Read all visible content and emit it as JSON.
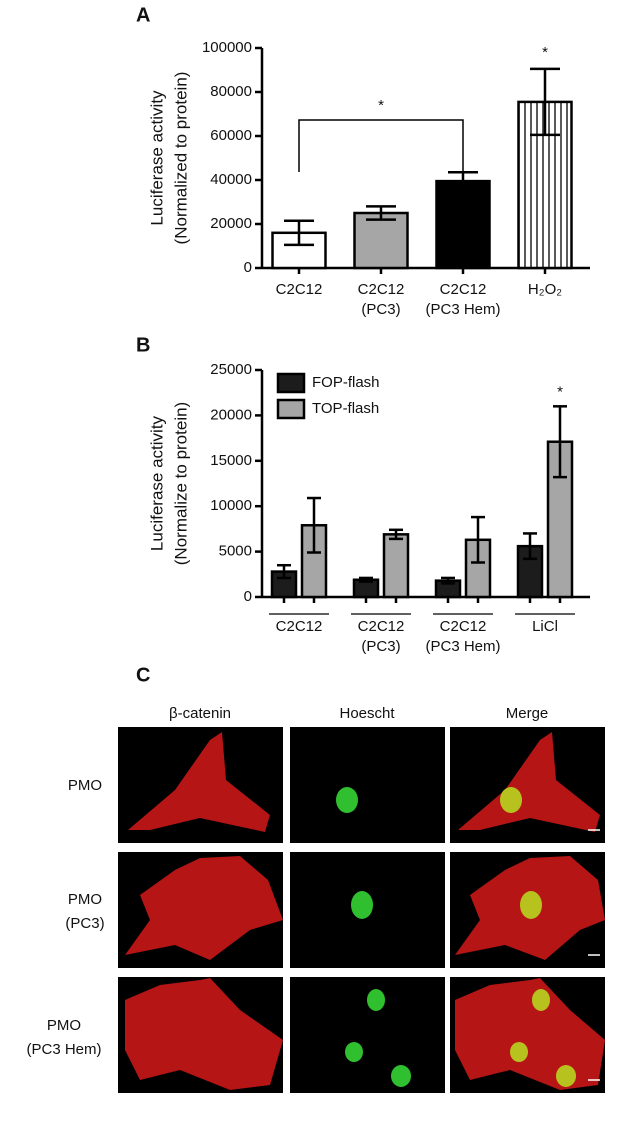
{
  "chart_data": [
    {
      "type": "bar",
      "panel": "A",
      "ylabel": [
        "Luciferase activity",
        "(Normalized to protein)"
      ],
      "categories": [
        [
          "C2C12"
        ],
        [
          "C2C12",
          "(PC3)"
        ],
        [
          "C2C12",
          "(PC3 Hem)"
        ],
        [
          "H₂O₂"
        ]
      ],
      "values": [
        16000,
        25000,
        39500,
        75500
      ],
      "errors": [
        5500,
        3000,
        4000,
        15000
      ],
      "colors": [
        "#ffffff",
        "#a6a6a6",
        "#000000",
        "#ffffff"
      ],
      "hatch": [
        false,
        false,
        false,
        true
      ],
      "annotations": [
        "*",
        "*"
      ],
      "ylim": [
        0,
        100000
      ],
      "yticks": [
        0,
        20000,
        40000,
        60000,
        80000,
        100000
      ],
      "grid": false
    },
    {
      "type": "bar",
      "panel": "B",
      "ylabel": [
        "Luciferase activity",
        "(Normalize to protein)"
      ],
      "categories": [
        [
          "C2C12"
        ],
        [
          "C2C12",
          "(PC3)"
        ],
        [
          "C2C12",
          "(PC3 Hem)"
        ],
        [
          "LiCl"
        ]
      ],
      "series": [
        {
          "name": "FOP-flash",
          "color": "#1c1c1c",
          "values": [
            2800,
            1900,
            1800,
            5600
          ],
          "errors": [
            700,
            200,
            300,
            1400
          ]
        },
        {
          "name": "TOP-flash",
          "color": "#a6a6a6",
          "values": [
            7900,
            6900,
            6300,
            17100
          ],
          "errors": [
            3000,
            500,
            2500,
            3900
          ]
        }
      ],
      "annotations": [
        "*"
      ],
      "legend": "top-left",
      "ylim": [
        0,
        25000
      ],
      "yticks": [
        0,
        5000,
        10000,
        15000,
        20000,
        25000
      ],
      "grid": false
    }
  ],
  "panel_c": {
    "label": "C",
    "columns": [
      "β-catenin",
      "Hoescht",
      "Merge"
    ],
    "rows": [
      [
        "PMO"
      ],
      [
        "PMO",
        "(PC3)"
      ],
      [
        "PMO",
        "(PC3 Hem)"
      ]
    ]
  }
}
